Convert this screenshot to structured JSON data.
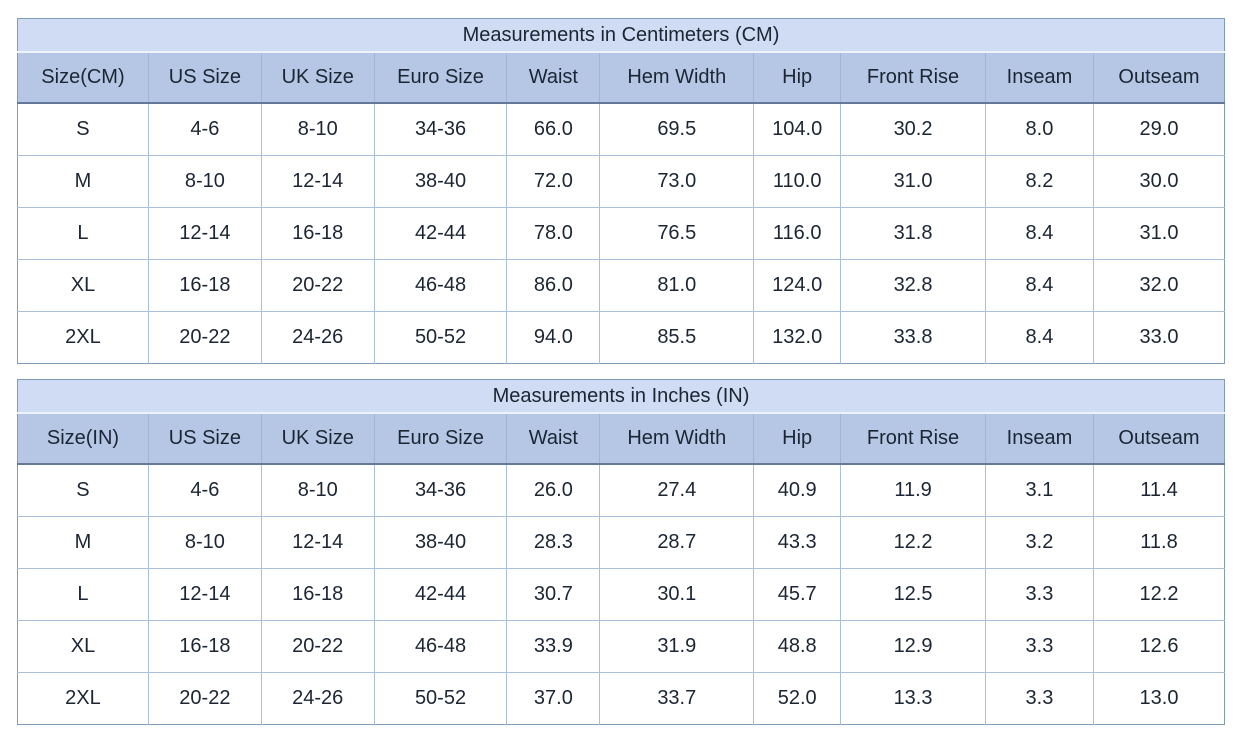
{
  "colors": {
    "title_row_bg": "#cfdcf3",
    "header_row_bg": "#b5c7e4",
    "cell_border": "#a9c0da",
    "outer_border": "#7f9cba",
    "header_underline": "#64799a",
    "text": "#1c2533",
    "page_bg": "#ffffff"
  },
  "chart_data": [
    {
      "type": "table",
      "title": "Measurements in Centimeters (CM)",
      "columns": [
        "Size(CM)",
        "US Size",
        "UK Size",
        "Euro Size",
        "Waist",
        "Hem Width",
        "Hip",
        "Front Rise",
        "Inseam",
        "Outseam"
      ],
      "rows": [
        [
          "S",
          "4-6",
          "8-10",
          "34-36",
          "66.0",
          "69.5",
          "104.0",
          "30.2",
          "8.0",
          "29.0"
        ],
        [
          "M",
          "8-10",
          "12-14",
          "38-40",
          "72.0",
          "73.0",
          "110.0",
          "31.0",
          "8.2",
          "30.0"
        ],
        [
          "L",
          "12-14",
          "16-18",
          "42-44",
          "78.0",
          "76.5",
          "116.0",
          "31.8",
          "8.4",
          "31.0"
        ],
        [
          "XL",
          "16-18",
          "20-22",
          "46-48",
          "86.0",
          "81.0",
          "124.0",
          "32.8",
          "8.4",
          "32.0"
        ],
        [
          "2XL",
          "20-22",
          "24-26",
          "50-52",
          "94.0",
          "85.5",
          "132.0",
          "33.8",
          "8.4",
          "33.0"
        ]
      ]
    },
    {
      "type": "table",
      "title": "Measurements in Inches (IN)",
      "columns": [
        "Size(IN)",
        "US Size",
        "UK Size",
        "Euro Size",
        "Waist",
        "Hem Width",
        "Hip",
        "Front Rise",
        "Inseam",
        "Outseam"
      ],
      "rows": [
        [
          "S",
          "4-6",
          "8-10",
          "34-36",
          "26.0",
          "27.4",
          "40.9",
          "11.9",
          "3.1",
          "11.4"
        ],
        [
          "M",
          "8-10",
          "12-14",
          "38-40",
          "28.3",
          "28.7",
          "43.3",
          "12.2",
          "3.2",
          "11.8"
        ],
        [
          "L",
          "12-14",
          "16-18",
          "42-44",
          "30.7",
          "30.1",
          "45.7",
          "12.5",
          "3.3",
          "12.2"
        ],
        [
          "XL",
          "16-18",
          "20-22",
          "46-48",
          "33.9",
          "31.9",
          "48.8",
          "12.9",
          "3.3",
          "12.6"
        ],
        [
          "2XL",
          "20-22",
          "24-26",
          "50-52",
          "37.0",
          "33.7",
          "52.0",
          "13.3",
          "3.3",
          "13.0"
        ]
      ]
    }
  ]
}
